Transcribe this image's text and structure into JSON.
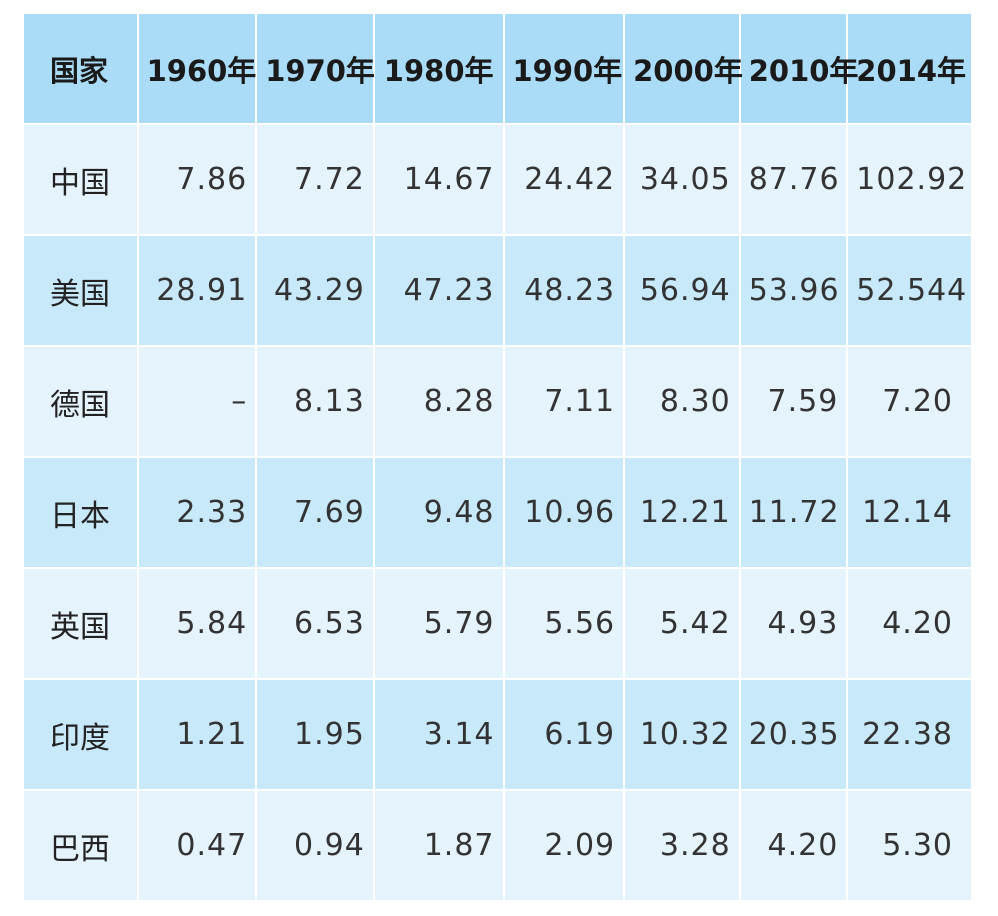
{
  "chart_data": {
    "type": "table",
    "columns": [
      "国家",
      "1960年",
      "1970年",
      "1980年",
      "1990年",
      "2000年",
      "2010年",
      "2014年"
    ],
    "rows": [
      {
        "country": "中国",
        "values": [
          "7.86",
          "7.72",
          "14.67",
          "24.42",
          "34.05",
          "87.76",
          "102.92"
        ]
      },
      {
        "country": "美国",
        "values": [
          "28.91",
          "43.29",
          "47.23",
          "48.23",
          "56.94",
          "53.96",
          "52.544"
        ]
      },
      {
        "country": "德国",
        "values": [
          "–",
          "8.13",
          "8.28",
          "7.11",
          "8.30",
          "7.59",
          "7.20"
        ]
      },
      {
        "country": "日本",
        "values": [
          "2.33",
          "7.69",
          "9.48",
          "10.96",
          "12.21",
          "11.72",
          "12.14"
        ]
      },
      {
        "country": "英国",
        "values": [
          "5.84",
          "6.53",
          "5.79",
          "5.56",
          "5.42",
          "4.93",
          "4.20"
        ]
      },
      {
        "country": "印度",
        "values": [
          "1.21",
          "1.95",
          "3.14",
          "6.19",
          "10.32",
          "20.35",
          "22.38"
        ]
      },
      {
        "country": "巴西",
        "values": [
          "0.47",
          "0.94",
          "1.87",
          "2.09",
          "3.28",
          "4.20",
          "5.30"
        ]
      }
    ]
  },
  "colors": {
    "header_bg": "#aadcf7",
    "row_light": "#e4f3fc",
    "row_dark": "#c8e9fa",
    "text": "#333333"
  }
}
